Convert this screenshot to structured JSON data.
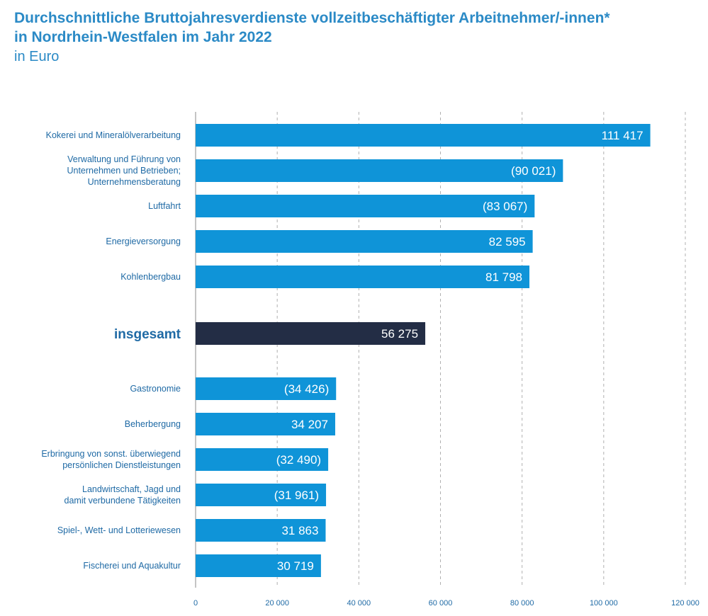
{
  "title_lines": [
    "Durchschnittliche Bruttojahresverdienste vollzeitbeschäftigter Arbeitnehmer/-innen*",
    "in Nordrhein-Westfalen im Jahr 2022"
  ],
  "subtitle": "in Euro",
  "colors": {
    "bar": "#0f94d8",
    "total_bar": "#232d45",
    "text": "#1f6aa5",
    "grid": "#b0b0b0"
  },
  "chart_data": {
    "type": "bar",
    "orientation": "horizontal",
    "title": "Durchschnittliche Bruttojahresverdienste vollzeitbeschäftigter Arbeitnehmer/-innen* in Nordrhein-Westfalen im Jahr 2022",
    "subtitle": "in Euro",
    "xlim": [
      0,
      120000
    ],
    "grid": true,
    "x_ticks": [
      0,
      20000,
      40000,
      60000,
      80000,
      100000,
      120000
    ],
    "x_tick_labels": [
      "0",
      "20 000",
      "40 000",
      "60 000",
      "80 000",
      "100 000",
      "120 000"
    ],
    "categories": [
      {
        "label_lines": [
          "Kokerei und Mineralölverarbeitung"
        ],
        "value": 111417,
        "value_label": "111 417",
        "highlight": false
      },
      {
        "label_lines": [
          "Verwaltung und Führung von",
          "Unternehmen und Betrieben;",
          "Unternehmensberatung"
        ],
        "value": 90021,
        "value_label": "(90 021)",
        "highlight": false
      },
      {
        "label_lines": [
          "Luftfahrt"
        ],
        "value": 83067,
        "value_label": "(83 067)",
        "highlight": false
      },
      {
        "label_lines": [
          "Energieversorgung"
        ],
        "value": 82595,
        "value_label": "82 595",
        "highlight": false
      },
      {
        "label_lines": [
          "Kohlenbergbau"
        ],
        "value": 81798,
        "value_label": "81 798",
        "highlight": false
      },
      {
        "label_lines": [
          "insgesamt"
        ],
        "value": 56275,
        "value_label": "56 275",
        "highlight": true
      },
      {
        "label_lines": [
          "Gastronomie"
        ],
        "value": 34426,
        "value_label": "(34 426)",
        "highlight": false
      },
      {
        "label_lines": [
          "Beherbergung"
        ],
        "value": 34207,
        "value_label": "34 207",
        "highlight": false
      },
      {
        "label_lines": [
          "Erbringung von sonst. überwiegend",
          "persönlichen Dienstleistungen"
        ],
        "value": 32490,
        "value_label": "(32 490)",
        "highlight": false
      },
      {
        "label_lines": [
          "Landwirtschaft, Jagd und",
          "damit verbundene Tätigkeiten"
        ],
        "value": 31961,
        "value_label": "(31 961)",
        "highlight": false
      },
      {
        "label_lines": [
          "Spiel-, Wett- und Lotteriewesen"
        ],
        "value": 31863,
        "value_label": "31 863",
        "highlight": false
      },
      {
        "label_lines": [
          "Fischerei und Aquakultur"
        ],
        "value": 30719,
        "value_label": "30 719",
        "highlight": false
      }
    ]
  }
}
